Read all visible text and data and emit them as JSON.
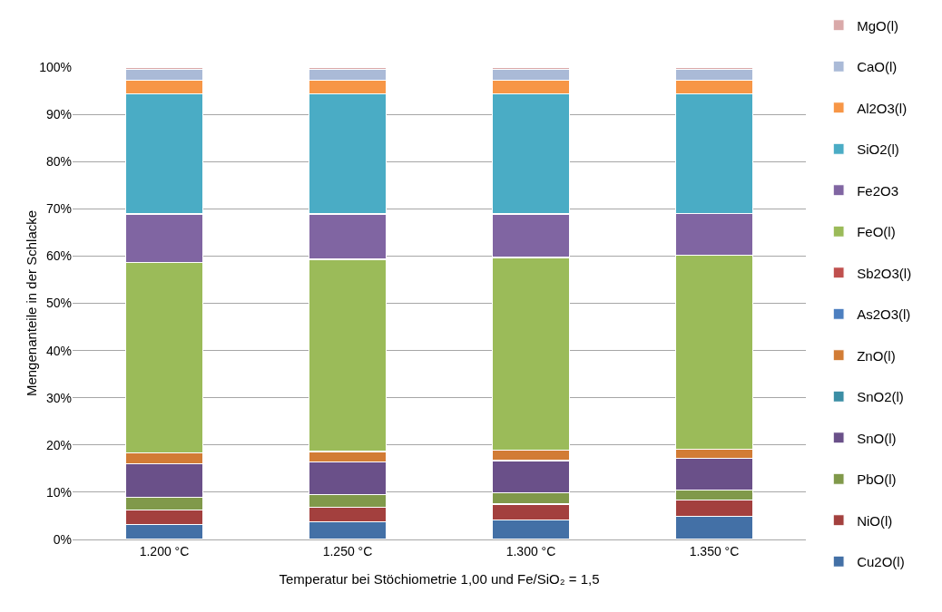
{
  "chart_data": {
    "type": "bar",
    "stacked": true,
    "xlabel": "Temperatur bei Stöchiometrie 1,00 und Fe/SiO₂ = 1,5",
    "ylabel": "Mengenanteile in der Schlacke",
    "categories": [
      "1.200 °C",
      "1.250 °C",
      "1.300 °C",
      "1.350 °C"
    ],
    "series": [
      {
        "name": "Cu2O(l)",
        "color": "#4370a6",
        "values": [
          3.1,
          3.7,
          4.2,
          4.9
        ]
      },
      {
        "name": "NiO(l)",
        "color": "#a3403e",
        "values": [
          3.1,
          3.1,
          3.3,
          3.4
        ]
      },
      {
        "name": "PbO(l)",
        "color": "#80994a",
        "values": [
          2.8,
          2.7,
          2.4,
          2.1
        ]
      },
      {
        "name": "SnO(l)",
        "color": "#6a5089",
        "values": [
          7.1,
          6.9,
          6.8,
          6.8
        ]
      },
      {
        "name": "SnO2(l)",
        "color": "#3b8ea5",
        "values": [
          0,
          0,
          0,
          0
        ]
      },
      {
        "name": "ZnO(l)",
        "color": "#d27c35",
        "values": [
          2.2,
          2.2,
          2.2,
          1.9
        ]
      },
      {
        "name": "As2O3(l)",
        "color": "#4c7fc0",
        "values": [
          0,
          0,
          0,
          0
        ]
      },
      {
        "name": "Sb2O3(l)",
        "color": "#c0504e",
        "values": [
          0,
          0,
          0,
          0
        ]
      },
      {
        "name": "FeO(l)",
        "color": "#9bbb59",
        "values": [
          40.3,
          40.7,
          40.8,
          41.0
        ]
      },
      {
        "name": "Fe2O3",
        "color": "#8065a2",
        "values": [
          10.3,
          9.6,
          9.2,
          8.9
        ]
      },
      {
        "name": "SiO2(l)",
        "color": "#4aacc5",
        "values": [
          25.4,
          25.4,
          25.4,
          25.3
        ]
      },
      {
        "name": "Al2O3(l)",
        "color": "#f79646",
        "values": [
          2.9,
          2.9,
          2.9,
          2.9
        ]
      },
      {
        "name": "CaO(l)",
        "color": "#aabad7",
        "values": [
          2.3,
          2.3,
          2.3,
          2.3
        ]
      },
      {
        "name": "MgO(l)",
        "color": "#d9a9a9",
        "values": [
          0.5,
          0.5,
          0.5,
          0.5
        ]
      }
    ],
    "ylim": [
      0,
      100
    ],
    "yticks": [
      {
        "value": 0,
        "label": "0%"
      },
      {
        "value": 10,
        "label": "10%"
      },
      {
        "value": 20,
        "label": "20%"
      },
      {
        "value": 30,
        "label": "30%"
      },
      {
        "value": 40,
        "label": "40%"
      },
      {
        "value": 50,
        "label": "50%"
      },
      {
        "value": 60,
        "label": "60%"
      },
      {
        "value": 70,
        "label": "70%"
      },
      {
        "value": 80,
        "label": "80%"
      },
      {
        "value": 90,
        "label": "90%"
      },
      {
        "value": 100,
        "label": "100%"
      }
    ],
    "grid": "y",
    "legend": "right"
  }
}
